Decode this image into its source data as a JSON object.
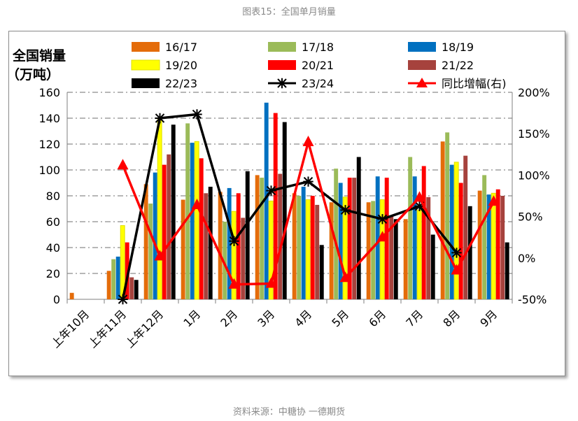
{
  "caption_top": "图表15：全国单月销量",
  "caption_bottom": "资料来源：中糖协  一德期货",
  "chart_data": {
    "type": "bar",
    "ylabel_line1": "全国销量",
    "ylabel_line2": "（万吨）",
    "categories": [
      "上年10月",
      "上年11月",
      "上年12月",
      "1月",
      "2月",
      "3月",
      "4月",
      "5月",
      "6月",
      "7月",
      "8月",
      "9月"
    ],
    "ylim": [
      0,
      160
    ],
    "yticks": [
      0,
      20,
      40,
      60,
      80,
      100,
      120,
      140,
      160
    ],
    "y2lim": [
      -50,
      200
    ],
    "y2ticks": [
      "-50%",
      "0%",
      "50%",
      "100%",
      "150%",
      "200%"
    ],
    "series": [
      {
        "name": "16/17",
        "color": "#e46c0a",
        "values": [
          5,
          22,
          89,
          77,
          83,
          96,
          82,
          75,
          75,
          62,
          122,
          84
        ]
      },
      {
        "name": "17/18",
        "color": "#9bbb59",
        "values": [
          0,
          31,
          74,
          136,
          60,
          94,
          80,
          101,
          76,
          110,
          129,
          96
        ]
      },
      {
        "name": "18/19",
        "color": "#0070c0",
        "values": [
          0,
          33,
          98,
          121,
          86,
          152,
          87,
          90,
          95,
          95,
          104,
          81
        ]
      },
      {
        "name": "19/20",
        "color": "#ffff00",
        "values": [
          0,
          57,
          139,
          122,
          68,
          76,
          77,
          79,
          77,
          69,
          106,
          82
        ]
      },
      {
        "name": "20/21",
        "color": "#ff0000",
        "values": [
          0,
          44,
          104,
          109,
          82,
          144,
          80,
          94,
          94,
          103,
          90,
          85
        ]
      },
      {
        "name": "21/22",
        "color": "#a6423d",
        "values": [
          0,
          17,
          112,
          82,
          63,
          97,
          73,
          94,
          64,
          79,
          111,
          80
        ]
      },
      {
        "name": "22/23",
        "color": "#000000",
        "values": [
          0,
          15,
          135,
          87,
          99,
          137,
          42,
          110,
          62,
          50,
          72,
          44
        ]
      },
      {
        "name": "23/24",
        "color": "#000000",
        "type": "line",
        "values": [
          null,
          0,
          140,
          143,
          45,
          84,
          91,
          69,
          62,
          72,
          36,
          null
        ]
      },
      {
        "name": "同比增幅(右)",
        "color": "#ff0000",
        "type": "line",
        "axis": "right",
        "values_pct": [
          null,
          112,
          2,
          64,
          -32,
          -31,
          140,
          -24,
          25,
          73,
          -15,
          68
        ]
      }
    ]
  }
}
